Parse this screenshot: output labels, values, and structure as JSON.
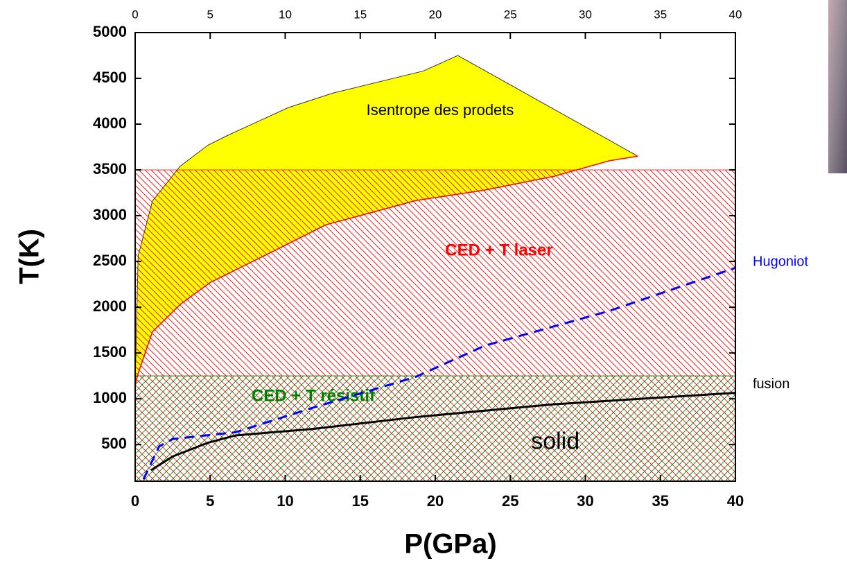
{
  "chart_data": {
    "type": "line",
    "xlabel": "P(GPa)",
    "ylabel": "T(K)",
    "xlim": [
      0,
      40
    ],
    "ylim": [
      100,
      5000
    ],
    "xticks": [
      0,
      5,
      10,
      15,
      20,
      25,
      30,
      35,
      40
    ],
    "yticks": [
      500,
      1000,
      1500,
      2000,
      2500,
      3000,
      3500,
      4000,
      4500,
      5000
    ],
    "series": [
      {
        "name": "Isentrope des prodets",
        "kind": "area",
        "color": "#ffff00",
        "edge_color": "#ff0000",
        "x": [
          0,
          0.2,
          1.15,
          3,
          4.85,
          6.2,
          10.2,
          13.2,
          19.2,
          21.5,
          33.5
        ],
        "values": [
          1150,
          2560,
          3160,
          3540,
          3770,
          3880,
          4180,
          4340,
          4580,
          4750,
          3650
        ],
        "x_lower": [
          0,
          0.2,
          1.15,
          3,
          5,
          9.5,
          12.7,
          18.7,
          23.3,
          27.9,
          31.6,
          33.5
        ],
        "lower": [
          1150,
          1277,
          1730,
          2030,
          2270,
          2636,
          2900,
          3165,
          3280,
          3430,
          3600,
          3650
        ]
      },
      {
        "name": "CED + T laser",
        "kind": "band",
        "color": "#ff0000",
        "values": [
          1250,
          3500
        ]
      },
      {
        "name": "CED + T résistif",
        "kind": "band",
        "color": "#008000",
        "values": [
          100,
          1250
        ]
      },
      {
        "name": "Hugoniot",
        "kind": "line",
        "color": "#0000ff",
        "dashed": true,
        "x": [
          0.55,
          1.6,
          2.5,
          6.7,
          11.8,
          18.7,
          23.3,
          31.6,
          40
        ],
        "values": [
          120,
          480,
          560,
          635,
          900,
          1240,
          1580,
          1960,
          2430
        ]
      },
      {
        "name": "fusion",
        "kind": "line",
        "color": "#000000",
        "dashed": false,
        "x": [
          1.06,
          2.5,
          4.85,
          6.7,
          11.8,
          18.7,
          27.9,
          40
        ],
        "values": [
          220,
          370,
          520,
          600,
          670,
          800,
          940,
          1065
        ]
      }
    ],
    "annotations": [
      {
        "text": "solid",
        "x": 28,
        "y": 520
      }
    ]
  }
}
